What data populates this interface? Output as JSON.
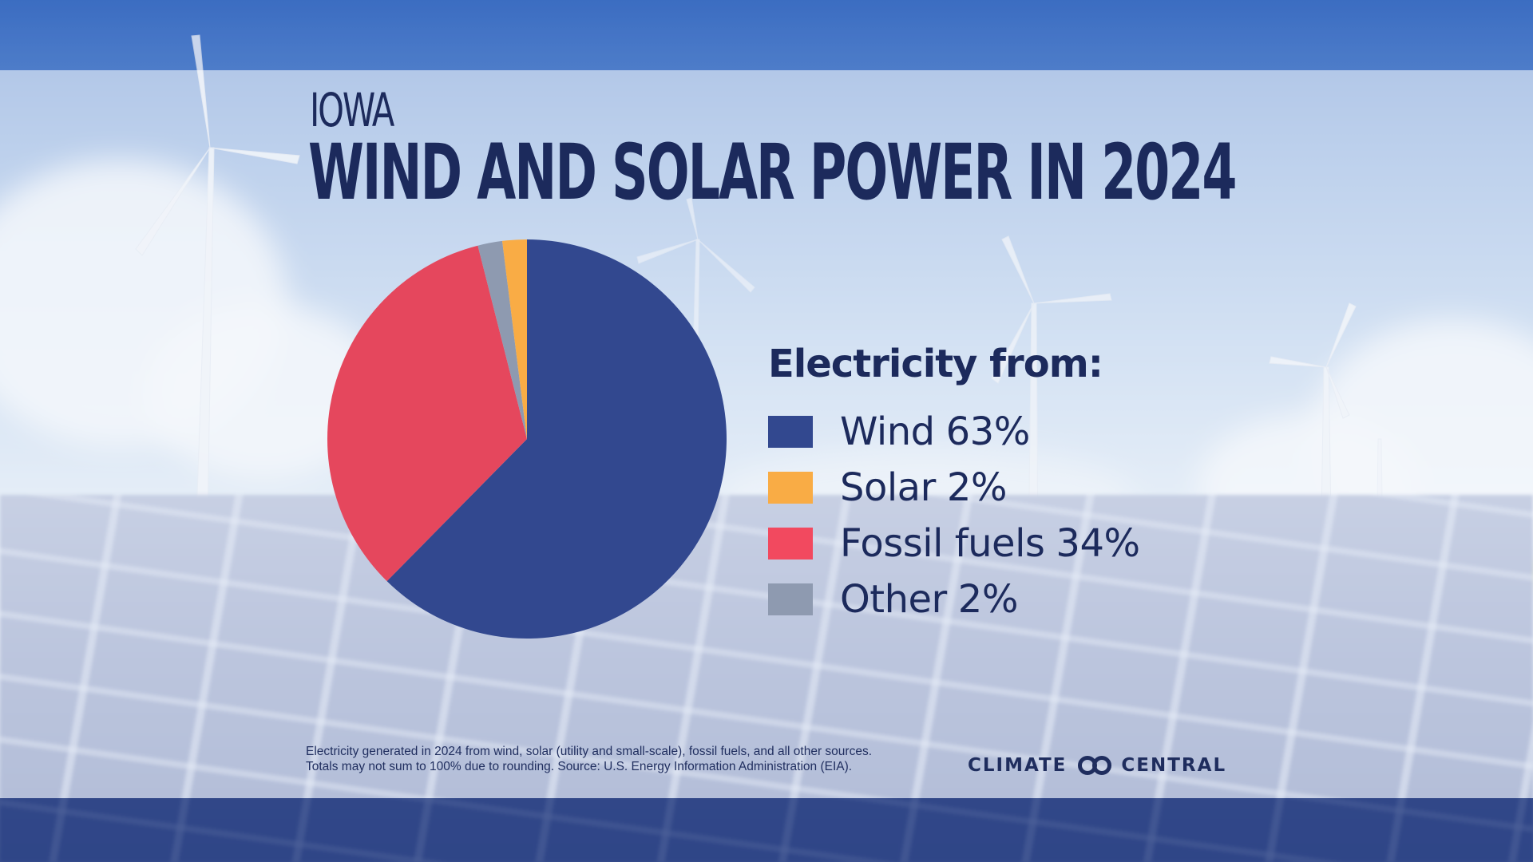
{
  "header": {
    "state": "IOWA",
    "title": "WIND AND SOLAR POWER IN 2024"
  },
  "chart_data": {
    "type": "pie",
    "title": "WIND AND SOLAR POWER IN 2024",
    "legend_title": "Electricity from:",
    "slices": [
      {
        "label": "Wind",
        "value": 63,
        "display": "63%",
        "color": "#32488f"
      },
      {
        "label": "Fossil fuels",
        "value": 34,
        "display": "34%",
        "color": "#e5475d"
      },
      {
        "label": "Other",
        "value": 2,
        "display": "2%",
        "color": "#8e9ab0"
      },
      {
        "label": "Solar",
        "value": 2,
        "display": "2%",
        "color": "#f9ac45"
      }
    ],
    "legend_order": [
      "Wind",
      "Solar",
      "Fossil fuels",
      "Other"
    ],
    "start_angle": "12 o'clock, clockwise"
  },
  "legend": {
    "heading": "Electricity from:",
    "items": [
      {
        "label": "Wind",
        "value": "63%",
        "color": "#32488f"
      },
      {
        "label": "Solar",
        "value": "2%",
        "color": "#f9ac45"
      },
      {
        "label": "Fossil fuels",
        "value": "34%",
        "color": "#f2495f"
      },
      {
        "label": "Other",
        "value": "2%",
        "color": "#8e9ab0"
      }
    ]
  },
  "footer": {
    "note_line1": "Electricity generated in 2024 from wind, solar (utility and small-scale), fossil fuels, and all other sources.",
    "note_line2": "Totals may not sum to 100% due to rounding. Source: U.S. Energy Information Administration (EIA).",
    "logo_left": "CLIMATE",
    "logo_right": "CENTRAL"
  }
}
